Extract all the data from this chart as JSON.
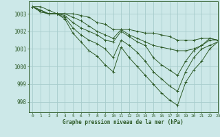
{
  "title": "Graphe pression niveau de la mer (hPa)",
  "background_color": "#cce8e8",
  "grid_color": "#a8cccc",
  "line_color": "#2d5a27",
  "xlim": [
    -0.5,
    23
  ],
  "ylim": [
    997.4,
    1003.7
  ],
  "yticks": [
    998,
    999,
    1000,
    1001,
    1002,
    1003
  ],
  "xticks": [
    0,
    1,
    2,
    3,
    4,
    5,
    6,
    7,
    8,
    9,
    10,
    11,
    12,
    13,
    14,
    15,
    16,
    17,
    18,
    19,
    20,
    21,
    22,
    23
  ],
  "series": [
    [
      1003.4,
      1003.4,
      1003.2,
      1003.0,
      1003.0,
      1003.0,
      1002.9,
      1002.8,
      1002.5,
      1002.4,
      1002.1,
      1002.1,
      1002.1,
      1002.0,
      1001.9,
      1001.9,
      1001.8,
      1001.7,
      1001.5,
      1001.5,
      1001.5,
      1001.6,
      1001.6,
      1001.5
    ],
    [
      1003.4,
      1003.2,
      1003.0,
      1003.0,
      1003.0,
      1002.8,
      1002.6,
      1002.3,
      1002.0,
      1001.8,
      1001.6,
      1002.1,
      1001.8,
      1001.6,
      1001.4,
      1001.2,
      1001.1,
      1001.0,
      1000.9,
      1000.9,
      1001.0,
      1001.2,
      1001.5,
      1001.5
    ],
    [
      1003.4,
      1003.2,
      1003.0,
      1003.0,
      1002.9,
      1002.5,
      1002.2,
      1002.0,
      1001.8,
      1001.5,
      1001.4,
      1002.0,
      1001.7,
      1001.4,
      1001.2,
      1000.5,
      1000.1,
      999.8,
      999.5,
      1000.3,
      1000.9,
      1001.2,
      1001.6,
      1001.5
    ],
    [
      1003.4,
      1003.1,
      1003.0,
      1003.0,
      1002.8,
      1002.2,
      1001.8,
      1001.5,
      1001.3,
      1001.0,
      1000.5,
      1001.5,
      1001.2,
      1000.8,
      1000.3,
      999.7,
      999.3,
      998.9,
      998.6,
      999.7,
      1000.5,
      1001.0,
      1001.2,
      1001.4
    ],
    [
      1003.4,
      1003.1,
      1003.0,
      1003.0,
      1002.7,
      1001.9,
      1001.4,
      1000.9,
      1000.6,
      1000.1,
      999.7,
      1001.1,
      1000.5,
      1000.0,
      999.5,
      999.0,
      998.5,
      998.1,
      997.8,
      999.1,
      999.8,
      1000.3,
      1001.0,
      1001.4
    ]
  ]
}
